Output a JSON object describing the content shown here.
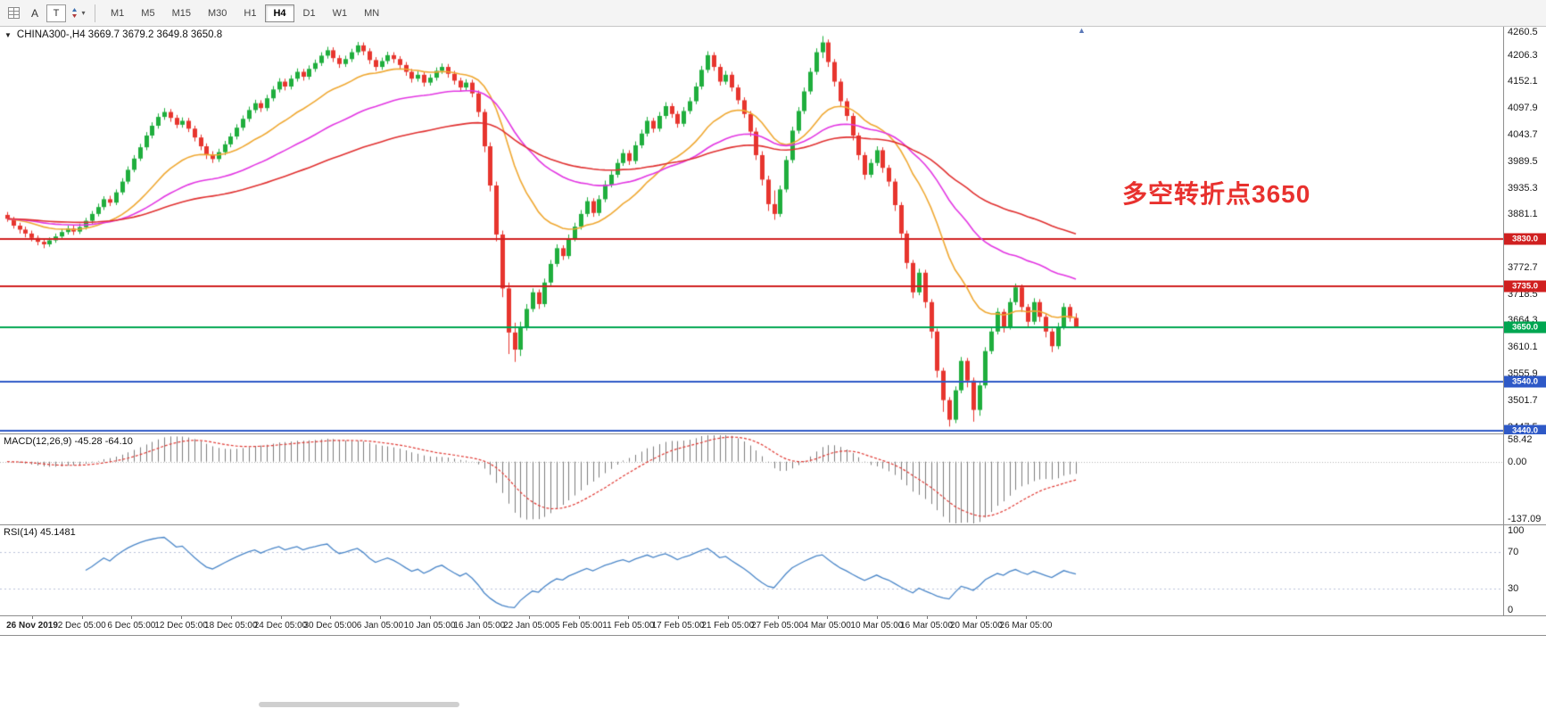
{
  "toolbar": {
    "tools": [
      "A",
      "T"
    ],
    "timeframes": [
      "M1",
      "M5",
      "M15",
      "M30",
      "H1",
      "H4",
      "D1",
      "W1",
      "MN"
    ],
    "active_timeframe": "H4"
  },
  "chart": {
    "title": "CHINA300-,H4 3669.7 3679.2 3649.8 3650.8",
    "annotation": {
      "text": "多空转折点3650",
      "color": "#e8312e"
    }
  },
  "chart_data": {
    "type": "candlestick",
    "symbol": "CHINA300-",
    "timeframe": "H4",
    "ohlc_display": {
      "open": 3669.7,
      "high": 3679.2,
      "low": 3649.8,
      "close": 3650.8
    },
    "colors": {
      "up": "#1fae3d",
      "down": "#e7352e"
    },
    "price_axis": {
      "max": 4264,
      "min": 3434,
      "labels": [
        "4260.5",
        "4206.3",
        "4152.1",
        "4097.9",
        "4043.7",
        "3989.5",
        "3935.3",
        "3881.1",
        "3826.9",
        "3772.7",
        "3718.5",
        "3664.3",
        "3610.1",
        "3555.9",
        "3501.7",
        "3447.5"
      ]
    },
    "levels": [
      {
        "value": 3830,
        "color": "#d02020",
        "label": "3830.0"
      },
      {
        "value": 3735,
        "color": "#d02020",
        "label": "3735.0"
      },
      {
        "value": 3650,
        "color": "#00a651",
        "label": "3650.0"
      },
      {
        "value": 3540,
        "color": "#2e59c7",
        "label": "3540.0"
      },
      {
        "value": 3440,
        "color": "#2e59c7",
        "label": "3440.0"
      }
    ],
    "moving_averages": [
      {
        "type": "ema",
        "period": 20,
        "color": "#efa832"
      },
      {
        "type": "ema",
        "period": 45,
        "color": "#e236e2"
      },
      {
        "type": "ema",
        "period": 90,
        "color": "#e03030"
      }
    ],
    "time_labels": [
      "26 Nov 2019",
      "2 Dec 05:00",
      "6 Dec 05:00",
      "12 Dec 05:00",
      "18 Dec 05:00",
      "24 Dec 05:00",
      "30 Dec 05:00",
      "6 Jan 05:00",
      "10 Jan 05:00",
      "16 Jan 05:00",
      "22 Jan 05:00",
      "5 Feb 05:00",
      "11 Feb 05:00",
      "17 Feb 05:00",
      "21 Feb 05:00",
      "27 Feb 05:00",
      "4 Mar 05:00",
      "10 Mar 05:00",
      "16 Mar 05:00",
      "20 Mar 05:00",
      "26 Mar 05:00"
    ],
    "indicators": {
      "macd": {
        "label": "MACD(12,26,9) -45.28 -64.10",
        "params": [
          12,
          26,
          9
        ],
        "current": [
          -45.28,
          -64.1
        ],
        "scale": {
          "max": 62,
          "min": -142
        },
        "axis_labels": [
          {
            "text": "58.42",
            "value": 58.42
          },
          {
            "text": "0.00",
            "value": 0
          },
          {
            "text": "-137.09",
            "value": -137.09
          }
        ]
      },
      "rsi": {
        "label": "RSI(14) 45.1481",
        "period": 14,
        "current": 45.1481,
        "levels": [
          70,
          30
        ],
        "axis_labels": [
          {
            "text": "100",
            "value": 100
          },
          {
            "text": "70",
            "value": 70
          },
          {
            "text": "30",
            "value": 30
          },
          {
            "text": "0",
            "value": 0
          }
        ]
      }
    },
    "candles": [
      [
        3880,
        3886,
        3866,
        3872
      ],
      [
        3872,
        3876,
        3852,
        3858
      ],
      [
        3858,
        3864,
        3842,
        3850
      ],
      [
        3850,
        3856,
        3834,
        3842
      ],
      [
        3842,
        3848,
        3826,
        3833
      ],
      [
        3833,
        3838,
        3818,
        3825
      ],
      [
        3825,
        3832,
        3812,
        3820
      ],
      [
        3820,
        3834,
        3815,
        3828
      ],
      [
        3828,
        3842,
        3823,
        3836
      ],
      [
        3836,
        3851,
        3831,
        3845
      ],
      [
        3845,
        3858,
        3840,
        3852
      ],
      [
        3852,
        3858,
        3839,
        3846
      ],
      [
        3846,
        3862,
        3841,
        3855
      ],
      [
        3855,
        3874,
        3850,
        3868
      ],
      [
        3868,
        3888,
        3862,
        3882
      ],
      [
        3882,
        3903,
        3877,
        3896
      ],
      [
        3896,
        3918,
        3890,
        3912
      ],
      [
        3912,
        3919,
        3898,
        3905
      ],
      [
        3905,
        3932,
        3900,
        3926
      ],
      [
        3926,
        3955,
        3921,
        3948
      ],
      [
        3948,
        3979,
        3943,
        3972
      ],
      [
        3972,
        4002,
        3967,
        3995
      ],
      [
        3995,
        4025,
        3990,
        4018
      ],
      [
        4018,
        4049,
        4012,
        4042
      ],
      [
        4042,
        4069,
        4036,
        4062
      ],
      [
        4062,
        4087,
        4056,
        4080
      ],
      [
        4080,
        4098,
        4074,
        4090
      ],
      [
        4090,
        4096,
        4070,
        4078
      ],
      [
        4078,
        4084,
        4057,
        4064
      ],
      [
        4064,
        4079,
        4058,
        4072
      ],
      [
        4072,
        4078,
        4049,
        4056
      ],
      [
        4056,
        4062,
        4030,
        4038
      ],
      [
        4038,
        4044,
        4012,
        4020
      ],
      [
        4020,
        4026,
        3994,
        4002
      ],
      [
        4002,
        4010,
        3986,
        3994
      ],
      [
        3994,
        4015,
        3988,
        4008
      ],
      [
        4008,
        4031,
        4002,
        4024
      ],
      [
        4024,
        4047,
        4018,
        4040
      ],
      [
        4040,
        4065,
        4034,
        4058
      ],
      [
        4058,
        4083,
        4052,
        4076
      ],
      [
        4076,
        4101,
        4070,
        4094
      ],
      [
        4094,
        4115,
        4088,
        4108
      ],
      [
        4108,
        4114,
        4090,
        4098
      ],
      [
        4098,
        4125,
        4092,
        4118
      ],
      [
        4118,
        4143,
        4112,
        4136
      ],
      [
        4136,
        4159,
        4130,
        4152
      ],
      [
        4152,
        4158,
        4134,
        4142
      ],
      [
        4142,
        4165,
        4136,
        4158
      ],
      [
        4158,
        4179,
        4152,
        4172
      ],
      [
        4172,
        4178,
        4154,
        4162
      ],
      [
        4162,
        4185,
        4156,
        4178
      ],
      [
        4178,
        4197,
        4172,
        4190
      ],
      [
        4190,
        4212,
        4184,
        4205
      ],
      [
        4205,
        4223,
        4199,
        4216
      ],
      [
        4216,
        4222,
        4192,
        4200
      ],
      [
        4200,
        4206,
        4180,
        4188
      ],
      [
        4188,
        4205,
        4182,
        4198
      ],
      [
        4198,
        4219,
        4192,
        4212
      ],
      [
        4212,
        4233,
        4206,
        4226
      ],
      [
        4226,
        4232,
        4206,
        4214
      ],
      [
        4214,
        4220,
        4188,
        4196
      ],
      [
        4196,
        4202,
        4174,
        4182
      ],
      [
        4182,
        4201,
        4176,
        4194
      ],
      [
        4194,
        4213,
        4188,
        4206
      ],
      [
        4206,
        4212,
        4190,
        4198
      ],
      [
        4198,
        4204,
        4178,
        4186
      ],
      [
        4186,
        4192,
        4164,
        4172
      ],
      [
        4172,
        4178,
        4150,
        4158
      ],
      [
        4158,
        4173,
        4152,
        4166
      ],
      [
        4166,
        4172,
        4142,
        4150
      ],
      [
        4150,
        4167,
        4144,
        4160
      ],
      [
        4160,
        4181,
        4154,
        4174
      ],
      [
        4174,
        4189,
        4168,
        4182
      ],
      [
        4182,
        4188,
        4160,
        4168
      ],
      [
        4168,
        4174,
        4146,
        4154
      ],
      [
        4154,
        4160,
        4132,
        4140
      ],
      [
        4140,
        4157,
        4134,
        4150
      ],
      [
        4150,
        4156,
        4120,
        4128
      ],
      [
        4128,
        4134,
        4080,
        4090
      ],
      [
        4090,
        4096,
        4008,
        4020
      ],
      [
        4020,
        4028,
        3928,
        3940
      ],
      [
        3940,
        3948,
        3826,
        3840
      ],
      [
        3840,
        3848,
        3712,
        3730
      ],
      [
        3730,
        3742,
        3596,
        3640
      ],
      [
        3640,
        3660,
        3580,
        3605
      ],
      [
        3605,
        3662,
        3592,
        3652
      ],
      [
        3652,
        3698,
        3644,
        3688
      ],
      [
        3688,
        3730,
        3682,
        3722
      ],
      [
        3722,
        3728,
        3688,
        3698
      ],
      [
        3698,
        3750,
        3692,
        3742
      ],
      [
        3742,
        3788,
        3736,
        3780
      ],
      [
        3780,
        3820,
        3774,
        3812
      ],
      [
        3812,
        3818,
        3788,
        3796
      ],
      [
        3796,
        3840,
        3790,
        3832
      ],
      [
        3832,
        3864,
        3826,
        3856
      ],
      [
        3856,
        3890,
        3850,
        3882
      ],
      [
        3882,
        3916,
        3876,
        3908
      ],
      [
        3908,
        3914,
        3876,
        3884
      ],
      [
        3884,
        3920,
        3878,
        3912
      ],
      [
        3912,
        3950,
        3906,
        3942
      ],
      [
        3942,
        3970,
        3936,
        3962
      ],
      [
        3962,
        3994,
        3956,
        3986
      ],
      [
        3986,
        4014,
        3980,
        4006
      ],
      [
        4006,
        4012,
        3982,
        3990
      ],
      [
        3990,
        4030,
        3984,
        4022
      ],
      [
        4022,
        4054,
        4016,
        4046
      ],
      [
        4046,
        4080,
        4040,
        4072
      ],
      [
        4072,
        4078,
        4048,
        4056
      ],
      [
        4056,
        4090,
        4050,
        4082
      ],
      [
        4082,
        4110,
        4076,
        4102
      ],
      [
        4102,
        4108,
        4078,
        4086
      ],
      [
        4086,
        4092,
        4058,
        4066
      ],
      [
        4066,
        4100,
        4060,
        4092
      ],
      [
        4092,
        4120,
        4086,
        4112
      ],
      [
        4112,
        4150,
        4106,
        4142
      ],
      [
        4142,
        4184,
        4136,
        4176
      ],
      [
        4176,
        4214,
        4170,
        4206
      ],
      [
        4206,
        4212,
        4174,
        4182
      ],
      [
        4182,
        4188,
        4144,
        4152
      ],
      [
        4152,
        4174,
        4146,
        4166
      ],
      [
        4166,
        4172,
        4132,
        4140
      ],
      [
        4140,
        4146,
        4106,
        4114
      ],
      [
        4114,
        4120,
        4078,
        4086
      ],
      [
        4086,
        4092,
        4040,
        4050
      ],
      [
        4050,
        4058,
        3992,
        4002
      ],
      [
        4002,
        4010,
        3940,
        3952
      ],
      [
        3952,
        3960,
        3888,
        3902
      ],
      [
        3902,
        3930,
        3870,
        3882
      ],
      [
        3882,
        3940,
        3876,
        3932
      ],
      [
        3932,
        4000,
        3926,
        3992
      ],
      [
        3992,
        4060,
        3986,
        4052
      ],
      [
        4052,
        4100,
        4046,
        4092
      ],
      [
        4092,
        4140,
        4086,
        4132
      ],
      [
        4132,
        4180,
        4126,
        4172
      ],
      [
        4172,
        4220,
        4166,
        4212
      ],
      [
        4212,
        4245,
        4200,
        4232
      ],
      [
        4232,
        4238,
        4182,
        4192
      ],
      [
        4192,
        4198,
        4142,
        4152
      ],
      [
        4152,
        4158,
        4102,
        4112
      ],
      [
        4112,
        4118,
        4072,
        4082
      ],
      [
        4082,
        4088,
        4032,
        4042
      ],
      [
        4042,
        4048,
        3992,
        4002
      ],
      [
        4002,
        4008,
        3952,
        3962
      ],
      [
        3962,
        3994,
        3956,
        3986
      ],
      [
        3986,
        4020,
        3980,
        4012
      ],
      [
        4012,
        4018,
        3966,
        3976
      ],
      [
        3976,
        3982,
        3938,
        3948
      ],
      [
        3948,
        3954,
        3888,
        3900
      ],
      [
        3900,
        3906,
        3830,
        3842
      ],
      [
        3842,
        3848,
        3770,
        3782
      ],
      [
        3782,
        3788,
        3710,
        3722
      ],
      [
        3722,
        3770,
        3716,
        3762
      ],
      [
        3762,
        3768,
        3690,
        3702
      ],
      [
        3702,
        3708,
        3628,
        3642
      ],
      [
        3642,
        3648,
        3548,
        3562
      ],
      [
        3562,
        3568,
        3478,
        3502
      ],
      [
        3502,
        3508,
        3448,
        3462
      ],
      [
        3462,
        3530,
        3455,
        3522
      ],
      [
        3522,
        3590,
        3516,
        3582
      ],
      [
        3582,
        3588,
        3528,
        3542
      ],
      [
        3542,
        3548,
        3458,
        3482
      ],
      [
        3482,
        3540,
        3470,
        3532
      ],
      [
        3532,
        3610,
        3526,
        3602
      ],
      [
        3602,
        3650,
        3596,
        3642
      ],
      [
        3642,
        3690,
        3636,
        3682
      ],
      [
        3682,
        3688,
        3640,
        3652
      ],
      [
        3652,
        3710,
        3646,
        3702
      ],
      [
        3702,
        3740,
        3696,
        3732
      ],
      [
        3732,
        3738,
        3682,
        3692
      ],
      [
        3692,
        3698,
        3650,
        3662
      ],
      [
        3662,
        3710,
        3656,
        3702
      ],
      [
        3702,
        3708,
        3662,
        3672
      ],
      [
        3672,
        3678,
        3630,
        3642
      ],
      [
        3642,
        3648,
        3600,
        3612
      ],
      [
        3612,
        3660,
        3606,
        3652
      ],
      [
        3652,
        3700,
        3646,
        3692
      ],
      [
        3692,
        3698,
        3662,
        3669.7
      ],
      [
        3669.7,
        3679.2,
        3649.8,
        3650.8
      ]
    ]
  }
}
